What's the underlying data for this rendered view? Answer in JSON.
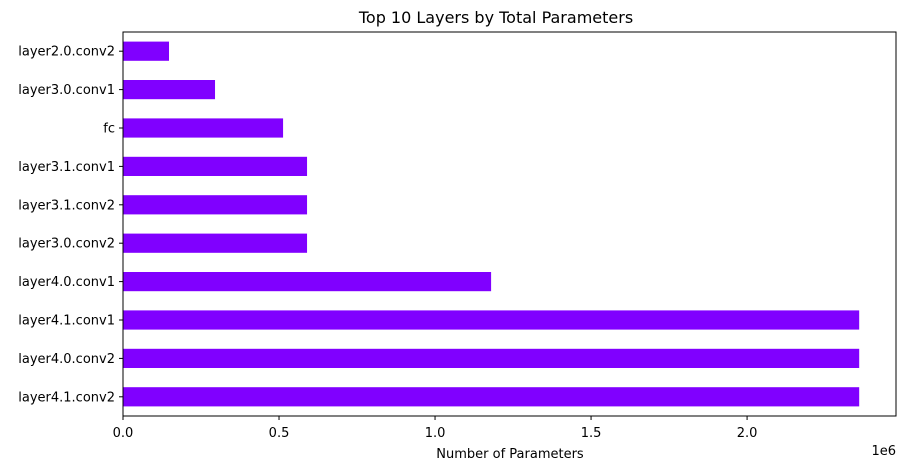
{
  "chart_data": {
    "type": "bar",
    "orientation": "horizontal",
    "title": "Top 10 Layers by Total Parameters",
    "xlabel": "Number of Parameters",
    "ylabel": "",
    "x_scale_label": "1e6",
    "categories": [
      "layer2.0.conv2",
      "layer3.0.conv1",
      "fc",
      "layer3.1.conv1",
      "layer3.1.conv2",
      "layer3.0.conv2",
      "layer4.0.conv1",
      "layer4.1.conv1",
      "layer4.0.conv2",
      "layer4.1.conv2"
    ],
    "values": [
      147456,
      294912,
      513000,
      589824,
      589824,
      589824,
      1179648,
      2359296,
      2359296,
      2359296
    ],
    "xlim": [
      0,
      2477261
    ],
    "xticks": [
      0,
      500000,
      1000000,
      1500000,
      2000000
    ],
    "xtick_labels": [
      "0.0",
      "0.5",
      "1.0",
      "1.5",
      "2.0"
    ],
    "bar_color": "#8000ff",
    "grid": false,
    "legend": "none"
  }
}
